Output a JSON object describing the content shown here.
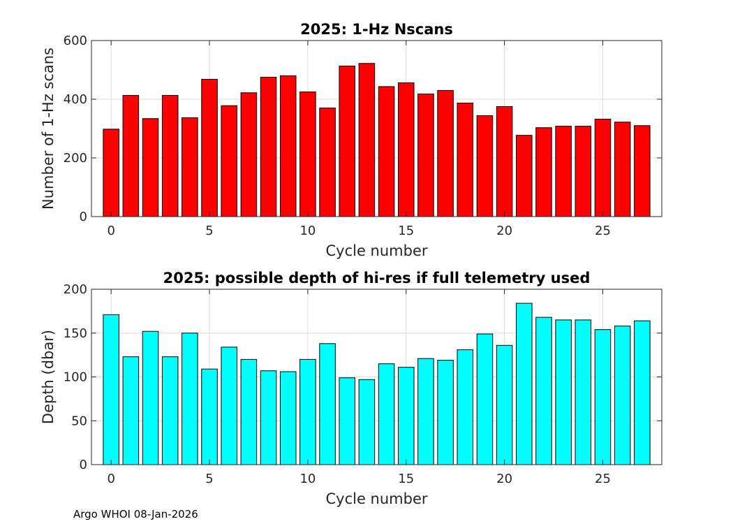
{
  "chart_data": [
    {
      "type": "bar",
      "title": "2025: 1-Hz Nscans",
      "xlabel": "Cycle number",
      "ylabel": "Number of 1-Hz scans",
      "x": [
        0,
        1,
        2,
        3,
        4,
        5,
        6,
        7,
        8,
        9,
        10,
        11,
        12,
        13,
        14,
        15,
        16,
        17,
        18,
        19,
        20,
        21,
        22,
        23,
        24,
        25,
        26,
        27
      ],
      "values": [
        298,
        413,
        334,
        413,
        337,
        468,
        378,
        422,
        475,
        480,
        425,
        370,
        513,
        522,
        443,
        456,
        418,
        430,
        387,
        344,
        375,
        277,
        303,
        308,
        308,
        332,
        322,
        310
      ],
      "xlim": [
        -1,
        28
      ],
      "ylim": [
        0,
        600
      ],
      "xticks": [
        0,
        5,
        10,
        15,
        20,
        25
      ],
      "yticks": [
        0,
        200,
        400,
        600
      ],
      "grid": true,
      "bar_color": "#ff0000"
    },
    {
      "type": "bar",
      "title": "2025: possible depth of hi-res if full telemetry used",
      "xlabel": "Cycle number",
      "ylabel": "Depth (dbar)",
      "x": [
        0,
        1,
        2,
        3,
        4,
        5,
        6,
        7,
        8,
        9,
        10,
        11,
        12,
        13,
        14,
        15,
        16,
        17,
        18,
        19,
        20,
        21,
        22,
        23,
        24,
        25,
        26,
        27
      ],
      "values": [
        171,
        123,
        152,
        123,
        150,
        109,
        134,
        120,
        107,
        106,
        120,
        138,
        99,
        97,
        115,
        111,
        121,
        119,
        131,
        149,
        136,
        184,
        168,
        165,
        165,
        154,
        158,
        164
      ],
      "xlim": [
        -1,
        28
      ],
      "ylim": [
        0,
        200
      ],
      "xticks": [
        0,
        5,
        10,
        15,
        20,
        25
      ],
      "yticks": [
        0,
        50,
        100,
        150,
        200
      ],
      "grid": true,
      "bar_color": "#00ffff"
    }
  ],
  "footer": "Argo WHOI 08-Jan-2026"
}
